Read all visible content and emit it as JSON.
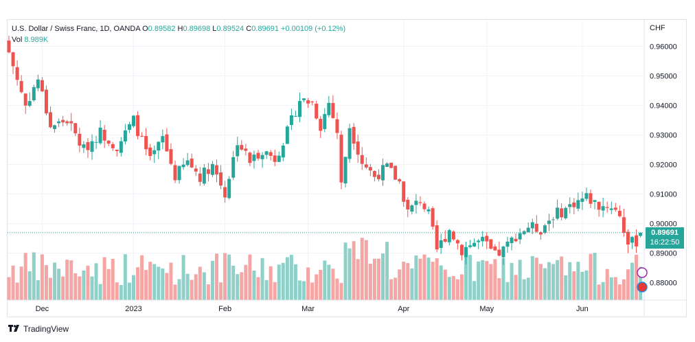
{
  "header": {
    "symbol": "U.S. Dollar / Swiss Franc, 1D, OANDA",
    "o_label": "O",
    "o_value": "0.89582",
    "h_label": "H",
    "h_value": "0.89698",
    "l_label": "L",
    "l_value": "0.89524",
    "c_label": "C",
    "c_value": "0.89691",
    "change": "+0.00109 (+0.12%)",
    "vol_label": "Vol",
    "vol_value": "8.989K"
  },
  "currency": "CHF",
  "last_price": {
    "value": "0.89691",
    "countdown": "16:22:50"
  },
  "footer": {
    "brand": "TradingView"
  },
  "colors": {
    "up": "#26a69a",
    "down": "#ef5350",
    "vol_up": "#8fd1c9",
    "vol_down": "#f5a5a3",
    "grid": "#f0f3fa"
  },
  "chart_data": {
    "type": "candlestick",
    "y_ticks": [
      "0.96000",
      "0.95000",
      "0.94000",
      "0.93000",
      "0.92000",
      "0.91000",
      "0.90000",
      "0.89000",
      "0.88000"
    ],
    "ylim": [
      0.8765,
      0.962
    ],
    "x_ticks": [
      {
        "label": "Dec",
        "index": 8
      },
      {
        "label": "2023",
        "index": 30
      },
      {
        "label": "Feb",
        "index": 52
      },
      {
        "label": "Mar",
        "index": 72
      },
      {
        "label": "Apr",
        "index": 95
      },
      {
        "label": "May",
        "index": 115
      },
      {
        "label": "Jun",
        "index": 138
      }
    ],
    "anchors": [
      [
        0,
        0.958
      ],
      [
        4,
        0.94
      ],
      [
        7,
        0.949
      ],
      [
        10,
        0.933
      ],
      [
        14,
        0.935
      ],
      [
        18,
        0.925
      ],
      [
        22,
        0.931
      ],
      [
        26,
        0.926
      ],
      [
        30,
        0.935
      ],
      [
        34,
        0.921
      ],
      [
        37,
        0.929
      ],
      [
        40,
        0.916
      ],
      [
        43,
        0.921
      ],
      [
        46,
        0.916
      ],
      [
        49,
        0.92
      ],
      [
        52,
        0.91
      ],
      [
        55,
        0.928
      ],
      [
        58,
        0.921
      ],
      [
        61,
        0.925
      ],
      [
        64,
        0.922
      ],
      [
        67,
        0.931
      ],
      [
        70,
        0.942
      ],
      [
        73,
        0.941
      ],
      [
        75,
        0.933
      ],
      [
        77,
        0.941
      ],
      [
        79,
        0.931
      ],
      [
        80,
        0.913
      ],
      [
        82,
        0.933
      ],
      [
        85,
        0.921
      ],
      [
        88,
        0.916
      ],
      [
        91,
        0.919
      ],
      [
        94,
        0.914
      ],
      [
        96,
        0.904
      ],
      [
        99,
        0.908
      ],
      [
        101,
        0.903
      ],
      [
        103,
        0.891
      ],
      [
        106,
        0.898
      ],
      [
        109,
        0.891
      ],
      [
        111,
        0.893
      ],
      [
        114,
        0.894
      ],
      [
        117,
        0.889
      ],
      [
        119,
        0.891
      ],
      [
        122,
        0.896
      ],
      [
        125,
        0.899
      ],
      [
        128,
        0.898
      ],
      [
        131,
        0.903
      ],
      [
        133,
        0.904
      ],
      [
        136,
        0.907
      ],
      [
        139,
        0.909
      ],
      [
        142,
        0.906
      ],
      [
        145,
        0.906
      ],
      [
        147,
        0.903
      ],
      [
        149,
        0.893
      ],
      [
        151,
        0.894
      ],
      [
        152,
        0.8969
      ]
    ],
    "volume_ylim": [
      0,
      20000
    ],
    "volume_label": "Vol"
  }
}
